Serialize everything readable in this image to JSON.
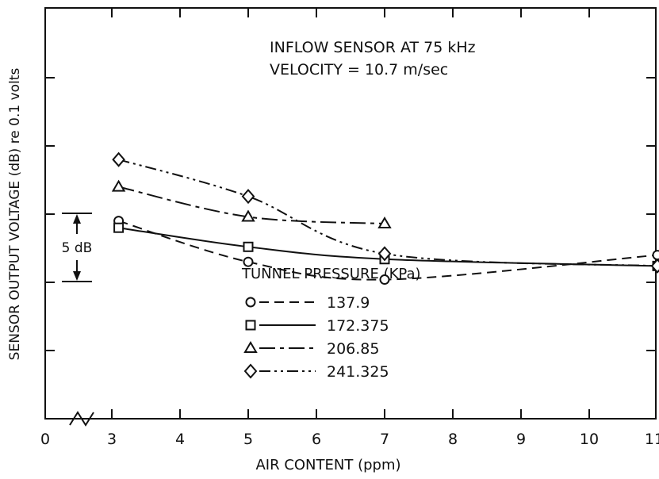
{
  "chart_data": {
    "type": "line",
    "annotation": [
      "INFLOW SENSOR AT 75 kHz",
      "VELOCITY = 10.7 m/sec"
    ],
    "xlabel": "AIR CONTENT (ppm)",
    "ylabel": "SENSOR OUTPUT VOLTAGE (dB) re 0.1 volts",
    "xlim": [
      0,
      11
    ],
    "x_ticks": [
      "0",
      "3",
      "4",
      "5",
      "6",
      "7",
      "8",
      "9",
      "10",
      "11"
    ],
    "y_scale_label": "5 dB",
    "legend_title": "TUNNEL PRESSURE (KPa)",
    "legend_position": "bottom-center",
    "grid": false,
    "series": [
      {
        "name": "137.9",
        "marker": "circle",
        "dash": "dashed",
        "points": [
          [
            3.1,
            14.5
          ],
          [
            5,
            11.5
          ],
          [
            7,
            10.2
          ],
          [
            11,
            12.0
          ]
        ]
      },
      {
        "name": "172.375",
        "marker": "square",
        "dash": "solid",
        "points": [
          [
            3.1,
            14.0
          ],
          [
            5,
            12.6
          ],
          [
            7,
            11.7
          ],
          [
            11,
            11.2
          ]
        ]
      },
      {
        "name": "206.85",
        "marker": "triangle",
        "dash": "long-dash",
        "points": [
          [
            3.1,
            17.0
          ],
          [
            5,
            14.8
          ],
          [
            7,
            14.3
          ]
        ]
      },
      {
        "name": "241.325",
        "marker": "diamond",
        "dash": "dash-dot-dot",
        "points": [
          [
            3.1,
            19.0
          ],
          [
            5,
            16.3
          ],
          [
            7,
            12.1
          ],
          [
            11,
            11.2
          ]
        ]
      }
    ]
  }
}
